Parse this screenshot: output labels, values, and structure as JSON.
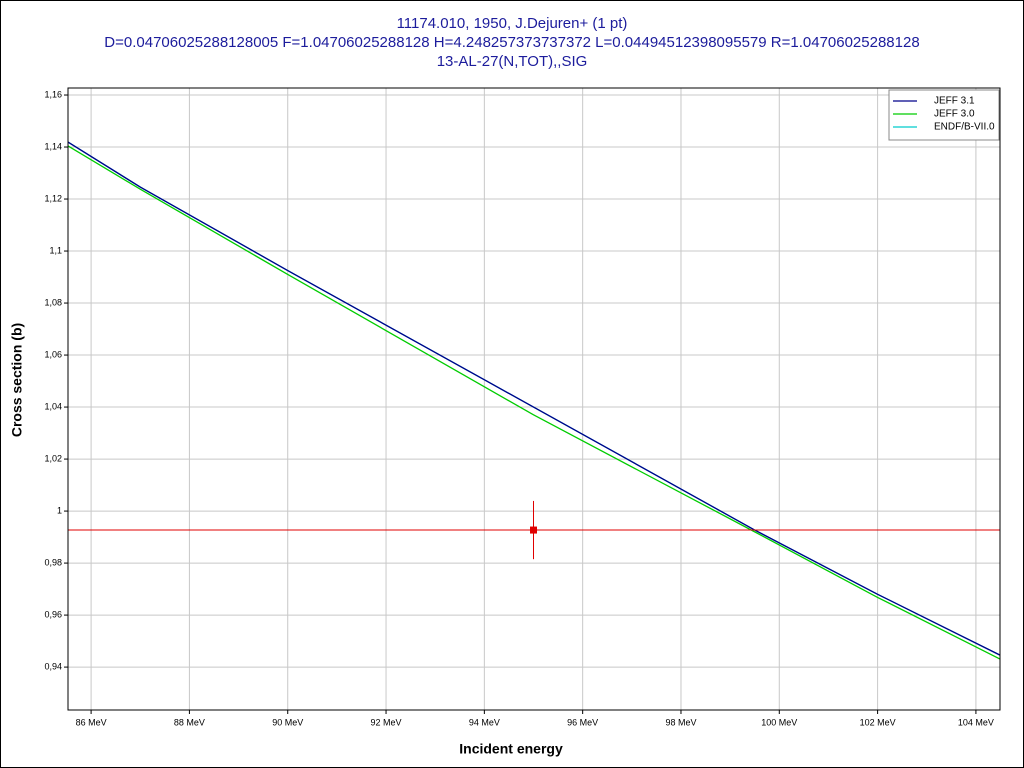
{
  "chart_data": {
    "type": "line",
    "title": "11174.010, 1950, J.Dejuren+ (1 pt)",
    "subtitle": "D=0.04706025288128005 F=1.04706025288128 H=4.248257373737372 L=0.04494512398095579 R=1.04706025288128",
    "subtitle2": "13-AL-27(N,TOT),,SIG",
    "xlabel": "Incident energy",
    "ylabel": "Cross section (b)",
    "xlim": [
      85.53,
      104.49
    ],
    "ylim": [
      0.9235,
      1.1627
    ],
    "xticks": [
      {
        "value": 86,
        "label": "86 MeV"
      },
      {
        "value": 88,
        "label": "88 MeV"
      },
      {
        "value": 90,
        "label": "90 MeV"
      },
      {
        "value": 92,
        "label": "92 MeV"
      },
      {
        "value": 94,
        "label": "94 MeV"
      },
      {
        "value": 96,
        "label": "96 MeV"
      },
      {
        "value": 98,
        "label": "98 MeV"
      },
      {
        "value": 100,
        "label": "100 MeV"
      },
      {
        "value": 102,
        "label": "102 MeV"
      },
      {
        "value": 104,
        "label": "104 MeV"
      }
    ],
    "yticks": [
      {
        "value": 0.94,
        "label": "0,94"
      },
      {
        "value": 0.96,
        "label": "0,96"
      },
      {
        "value": 0.98,
        "label": "0,98"
      },
      1,
      {
        "value": 1.02,
        "label": "1,02"
      },
      {
        "value": 1.04,
        "label": "1,04"
      },
      {
        "value": 1.06,
        "label": "1,06"
      },
      {
        "value": 1.08,
        "label": "1,08"
      },
      {
        "value": 1.1,
        "label": "1,1"
      },
      {
        "value": 1.12,
        "label": "1,12"
      },
      {
        "value": 1.14,
        "label": "1,14"
      },
      {
        "value": 1.16,
        "label": "1,16"
      }
    ],
    "grid": true,
    "legend": "upper right",
    "series": [
      {
        "name": "JEFF 3.1",
        "color": "#00008b",
        "x": [
          85.53,
          87,
          90,
          95,
          99.5,
          102,
          104.49
        ],
        "values": [
          1.1419,
          1.1246,
          1.0925,
          1.04,
          0.9927,
          0.968,
          0.9446
        ]
      },
      {
        "name": "JEFF 3.0",
        "color": "#00cc00",
        "x": [
          85.53,
          87,
          90,
          95,
          99.5,
          102,
          104.49
        ],
        "values": [
          1.1404,
          1.1238,
          1.091,
          1.037,
          0.992,
          0.9668,
          0.9431
        ]
      },
      {
        "name": "ENDF/B-VII.0",
        "color": "#00cccc",
        "x": [
          85.53,
          87,
          90,
          95,
          99.5,
          102,
          104.49
        ],
        "values": [
          1.1419,
          1.1246,
          1.0925,
          1.04,
          0.9927,
          0.968,
          0.9446
        ]
      }
    ],
    "measurement": {
      "color": "#e00000",
      "x": [
        95
      ],
      "values": [
        0.9927
      ],
      "yerr": [
        0.0112
      ]
    }
  }
}
